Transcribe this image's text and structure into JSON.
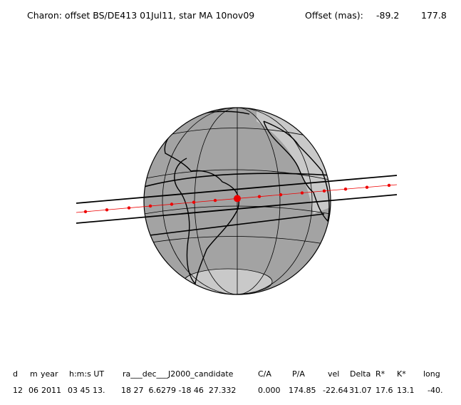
{
  "header": {
    "title": "Charon: offset BS/DE413 01Jul11, star MA 10nov09",
    "offset_label": "Offset (mas):",
    "offsets": [
      "-89.2",
      "177.8"
    ]
  },
  "table": {
    "columns": [
      "d",
      "m",
      "year",
      "h:m:s UT",
      "ra___dec___J2000_candidate",
      "C/A",
      "P/A",
      "vel",
      "Delta",
      "R*",
      "K*",
      "long"
    ],
    "rows": [
      [
        "12",
        "06",
        "2011",
        "03 45 13.",
        "18 27  6.6279 -18 46  27.332",
        "0.000",
        "174.85",
        "-22.64",
        "31.07",
        "17.6",
        "13.1",
        "-40."
      ]
    ]
  }
}
